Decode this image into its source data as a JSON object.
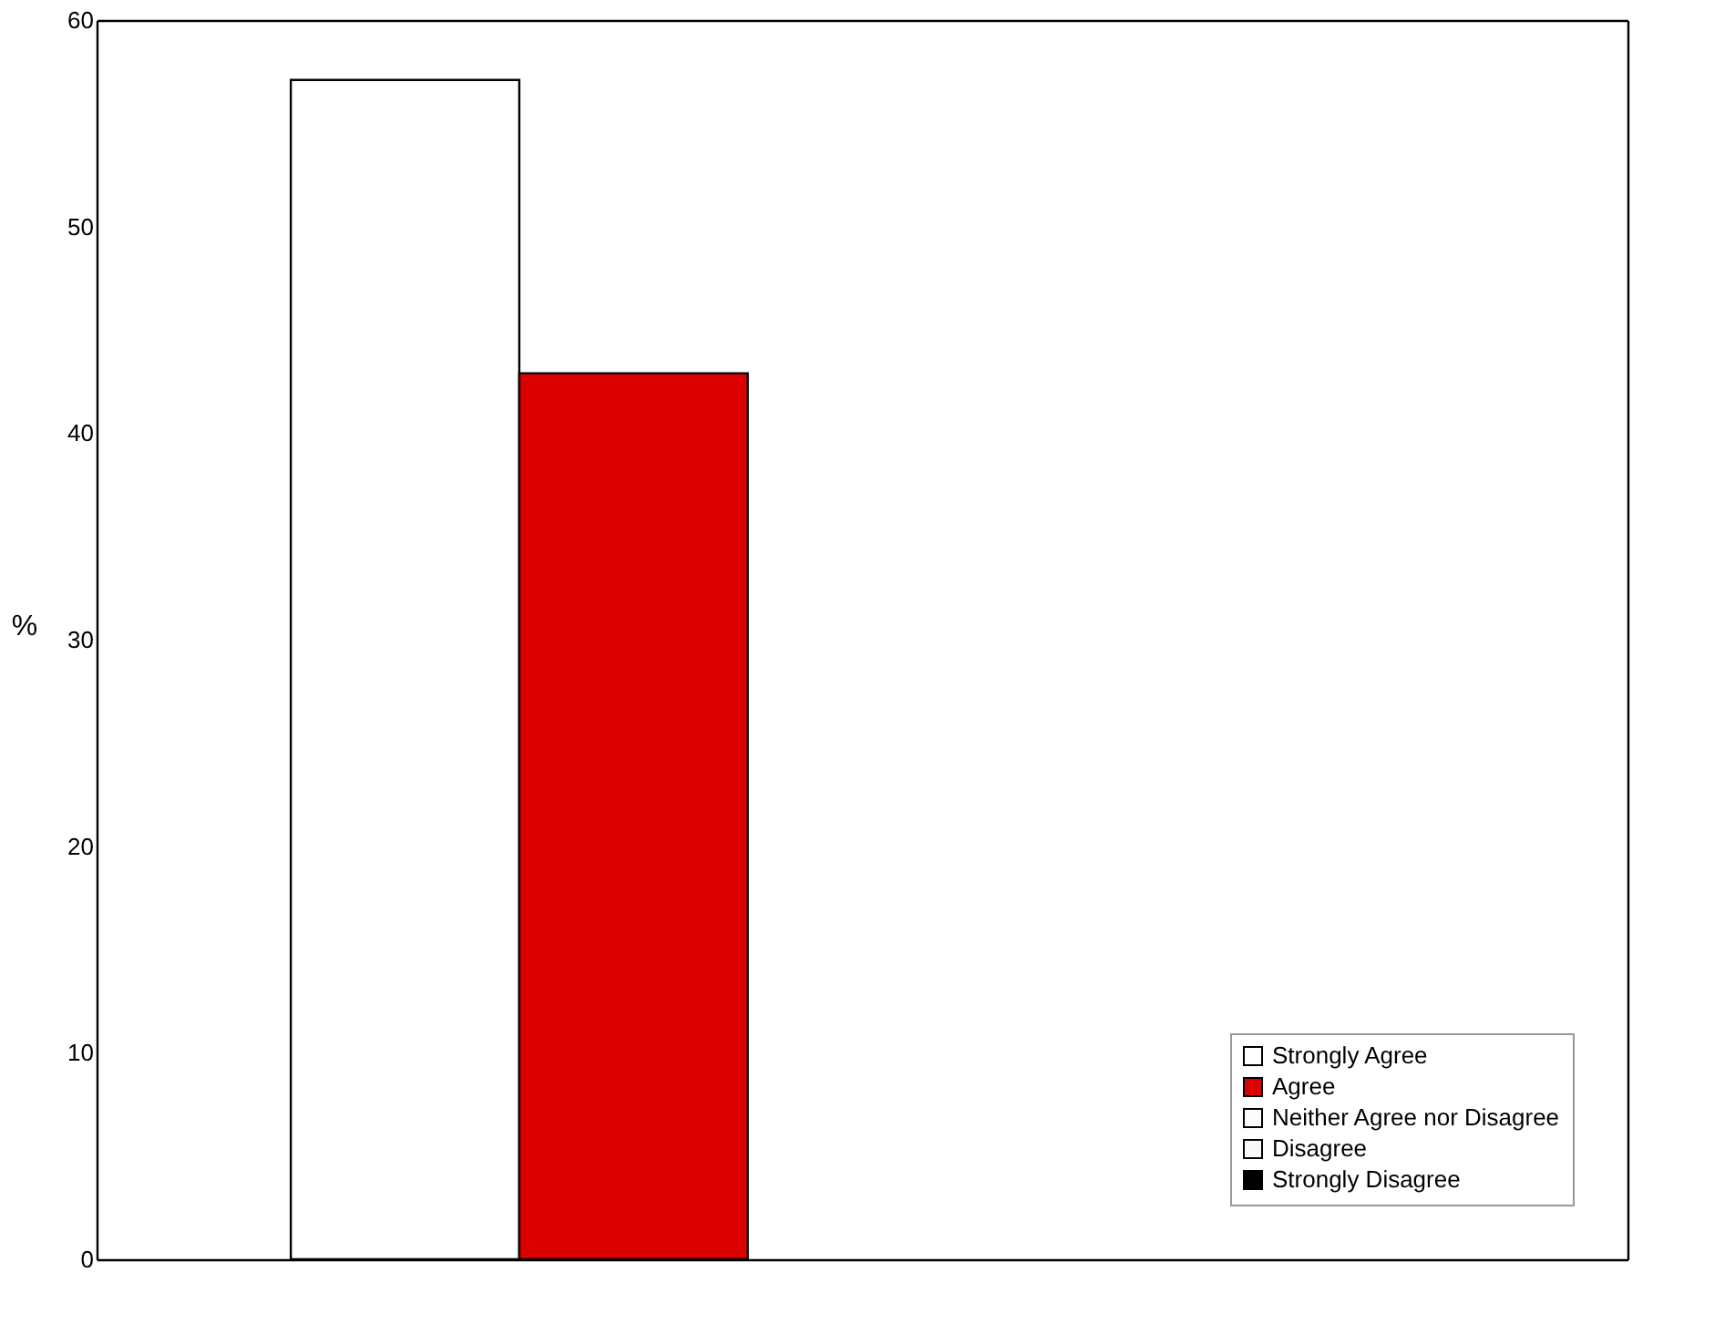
{
  "chart_data": {
    "type": "bar",
    "ylabel": "%",
    "categories": [
      null
    ],
    "series": [
      {
        "name": "Strongly Agree",
        "color": "#ffffff",
        "values": [
          57.1
        ]
      },
      {
        "name": "Agree",
        "color": "#dd0000",
        "values": [
          42.9
        ]
      },
      {
        "name": "Neither Agree nor Disagree",
        "color": "#fcfcfc",
        "values": [
          null
        ]
      },
      {
        "name": "Disagree",
        "color": "#f8f8f8",
        "values": [
          null
        ]
      },
      {
        "name": "Strongly Disagree",
        "color": "#000000",
        "values": [
          null
        ]
      }
    ],
    "ylim": [
      0,
      60
    ],
    "yticks": [
      0,
      10,
      20,
      30,
      40,
      50,
      60
    ],
    "grid": false,
    "legend": "bottom right",
    "tick_labels": "y"
  }
}
